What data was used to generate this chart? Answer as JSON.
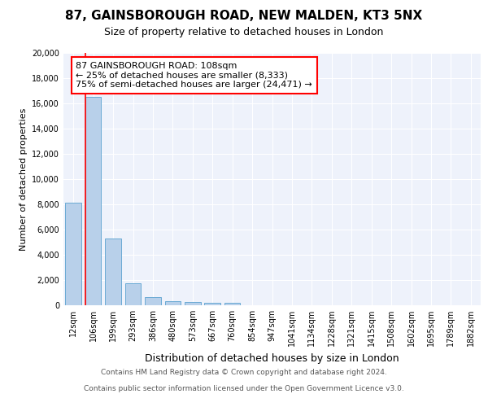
{
  "title_line1": "87, GAINSBOROUGH ROAD, NEW MALDEN, KT3 5NX",
  "title_line2": "Size of property relative to detached houses in London",
  "xlabel": "Distribution of detached houses by size in London",
  "ylabel": "Number of detached properties",
  "categories": [
    "12sqm",
    "106sqm",
    "199sqm",
    "293sqm",
    "386sqm",
    "480sqm",
    "573sqm",
    "667sqm",
    "760sqm",
    "854sqm",
    "947sqm",
    "1041sqm",
    "1134sqm",
    "1228sqm",
    "1321sqm",
    "1415sqm",
    "1508sqm",
    "1602sqm",
    "1695sqm",
    "1789sqm",
    "1882sqm"
  ],
  "values": [
    8100,
    16500,
    5300,
    1750,
    650,
    350,
    250,
    180,
    180,
    0,
    0,
    0,
    0,
    0,
    0,
    0,
    0,
    0,
    0,
    0,
    0
  ],
  "bar_color": "#b8d0ea",
  "bar_edge_color": "#6aaad4",
  "annotation_text_line1": "87 GAINSBOROUGH ROAD: 108sqm",
  "annotation_text_line2": "← 25% of detached houses are smaller (8,333)",
  "annotation_text_line3": "75% of semi-detached houses are larger (24,471) →",
  "vline_x_idx": 1,
  "ylim": [
    0,
    20000
  ],
  "yticks": [
    0,
    2000,
    4000,
    6000,
    8000,
    10000,
    12000,
    14000,
    16000,
    18000,
    20000
  ],
  "bg_color": "#eef2fb",
  "grid_color": "#ffffff",
  "title_fontsize": 11,
  "subtitle_fontsize": 9,
  "ylabel_fontsize": 8,
  "xlabel_fontsize": 9,
  "tick_fontsize": 7,
  "footer_line1": "Contains HM Land Registry data © Crown copyright and database right 2024.",
  "footer_line2": "Contains public sector information licensed under the Open Government Licence v3.0."
}
